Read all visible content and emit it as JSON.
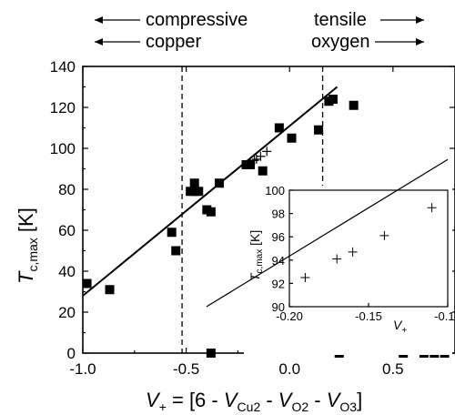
{
  "chart_data": {
    "type": "scatter",
    "xlabel": "V+ = [6 - VCu2 - VO2 - VO3]",
    "ylabel": "Tc,max [K]",
    "xlim": [
      -1.0,
      0.8
    ],
    "ylim": [
      0,
      140
    ],
    "xticks": [
      "-1.0",
      "-0.5",
      "0.0",
      "0.5"
    ],
    "yticks": [
      "0",
      "20",
      "40",
      "60",
      "80",
      "100",
      "120",
      "140"
    ],
    "annotations": {
      "left_top": "compressive",
      "left_bottom": "copper",
      "right_top": "tensile",
      "right_bottom": "oxygen"
    },
    "vlines": [
      -0.52,
      0.16
    ],
    "fit_line": {
      "x": [
        -1.0,
        0.23
      ],
      "y": [
        28,
        130
      ]
    },
    "series": [
      {
        "marker": "square",
        "x": [
          -0.98,
          -0.87,
          -0.57,
          -0.55,
          -0.48,
          -0.46,
          -0.46,
          -0.44,
          -0.4,
          -0.38,
          -0.34,
          -0.21,
          -0.19,
          -0.13,
          -0.05,
          0.01,
          0.14,
          0.19,
          0.21,
          0.31,
          -0.38,
          0.24,
          0.55,
          0.65,
          0.7,
          0.75
        ],
        "y": [
          34,
          31,
          59,
          50,
          79,
          79,
          83,
          79,
          70,
          69,
          83,
          92,
          92,
          89,
          110,
          105,
          109,
          123,
          124,
          121,
          0,
          0,
          0,
          0,
          0,
          0
        ]
      },
      {
        "marker": "plus",
        "x": [
          -0.19,
          -0.17,
          -0.16,
          -0.14,
          -0.11
        ],
        "y": [
          92.5,
          94.1,
          94.7,
          96.1,
          98.5
        ]
      }
    ],
    "inset": {
      "xlabel": "V+",
      "ylabel": "Tc,max [K]",
      "xlim": [
        -0.2,
        -0.1
      ],
      "ylim": [
        90,
        100
      ],
      "xticks": [
        "-0.20",
        "-0.15",
        "-0.10"
      ],
      "yticks": [
        "90",
        "92",
        "94",
        "96",
        "98",
        "100"
      ]
    }
  }
}
